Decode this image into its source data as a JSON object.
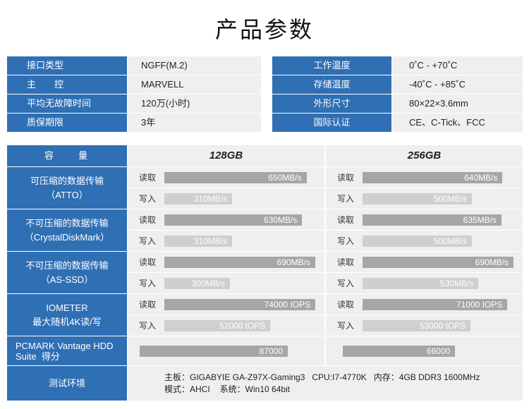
{
  "page_title": "产品参数",
  "spec_left": [
    {
      "label": "接口类型",
      "value": "NGFF(M.2)"
    },
    {
      "label": "主　　控",
      "value": "MARVELL"
    },
    {
      "label": "平均无故障时间",
      "value": "120万(小时)"
    },
    {
      "label": "质保期限",
      "value": "3年"
    }
  ],
  "spec_right": [
    {
      "label": "工作温度",
      "value": "0˚C - +70˚C"
    },
    {
      "label": "存储温度",
      "value": "-40˚C - +85˚C"
    },
    {
      "label": "外形尺寸",
      "value": "80×22×3.6mm"
    },
    {
      "label": "国际认证",
      "value": "CE、C-Tick、FCC"
    }
  ],
  "performance": {
    "header_label": "容　　量",
    "capacities": [
      "128GB",
      "256GB"
    ],
    "read_label": "读取",
    "write_label": "写入",
    "groups": [
      {
        "label_lines": [
          "可压缩的数据传输",
          "（ATTO）"
        ],
        "results": [
          {
            "read": "650MB/s",
            "write": "310MB/s"
          },
          {
            "read": "640MB/s",
            "write": "500MB/s"
          }
        ]
      },
      {
        "label_lines": [
          "不可压缩的数据传输",
          "（CrystalDiskMark）"
        ],
        "results": [
          {
            "read": "630MB/s",
            "write": "310MB/s"
          },
          {
            "read": "635MB/s",
            "write": "500MB/s"
          }
        ]
      },
      {
        "label_lines": [
          "不可压缩的数据传输",
          "（AS-SSD）"
        ],
        "results": [
          {
            "read": "690MB/s",
            "write": "300MB/s"
          },
          {
            "read": "690MB/s",
            "write": "530MB/s"
          }
        ]
      },
      {
        "label_lines": [
          "IOMETER",
          "最大随机4K读/写"
        ],
        "results": [
          {
            "read": "74000 IOPS",
            "write": "52000 IOPS"
          },
          {
            "read": "71000 IOPS",
            "write": "53000 IOPS"
          }
        ]
      }
    ],
    "pcmark": {
      "label_lines": [
        "PCMARK Vantage HDD",
        "Suite  得分"
      ],
      "scores": [
        "87000",
        "66000"
      ]
    },
    "test_env": {
      "label": "测试环境",
      "lines": [
        [
          "主板：GIGABYIE GA-Z97X-Gaming3",
          "CPU:I7-4770K",
          "内存：4GB DDR3 1600MHz"
        ],
        [
          "模式：AHCI",
          "系统：Win10 64bit"
        ]
      ]
    }
  },
  "colors": {
    "label_blue": "#2f6fb4",
    "cell_background": "#efefef",
    "read_bar": "#a6a6a6",
    "write_bar": "#cfcfcf"
  }
}
